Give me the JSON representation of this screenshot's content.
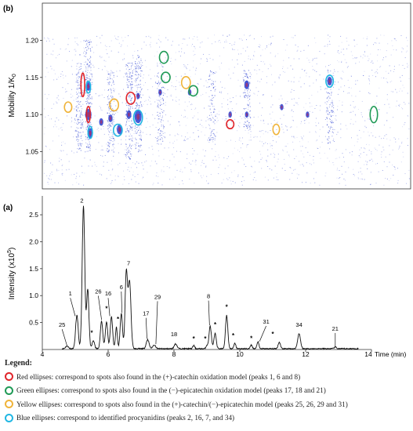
{
  "colors": {
    "red": "#e0252b",
    "green": "#1f9a56",
    "yellow": "#f0b43a",
    "blue": "#21b7e3",
    "spot": "#2a3fd0",
    "trace": "#111111"
  },
  "chart_data": [
    {
      "type": "heatmap",
      "panel_label": "(b)",
      "ylabel": "Mobility 1/K",
      "ylabel_sub": "0",
      "ylim": [
        1.0,
        1.25
      ],
      "yticks": [
        "1.20",
        "1.15",
        "1.10",
        "1.05"
      ],
      "ytick_values": [
        1.2,
        1.15,
        1.1,
        1.05
      ],
      "xlim": [
        4,
        14
      ],
      "spot_bands": [
        {
          "x": 5.0,
          "y1": 1.05,
          "y2": 1.17,
          "strength": 0.5
        },
        {
          "x": 5.25,
          "y1": 1.05,
          "y2": 1.2,
          "strength": 0.7
        },
        {
          "x": 5.85,
          "y1": 1.05,
          "y2": 1.16,
          "strength": 0.5
        },
        {
          "x": 6.35,
          "y1": 1.04,
          "y2": 1.17,
          "strength": 0.6
        },
        {
          "x": 6.6,
          "y1": 1.05,
          "y2": 1.18,
          "strength": 0.6
        },
        {
          "x": 7.2,
          "y1": 1.06,
          "y2": 1.17,
          "strength": 0.35
        },
        {
          "x": 8.6,
          "y1": 1.06,
          "y2": 1.16,
          "strength": 0.3
        },
        {
          "x": 9.55,
          "y1": 1.08,
          "y2": 1.16,
          "strength": 0.35
        },
        {
          "x": 11.8,
          "y1": 1.06,
          "y2": 1.16,
          "strength": 0.35
        }
      ],
      "spots": [
        {
          "x": 5.25,
          "y": 1.138,
          "r": 3.5
        },
        {
          "x": 5.25,
          "y": 1.1,
          "r": 4.5
        },
        {
          "x": 5.3,
          "y": 1.075,
          "r": 4
        },
        {
          "x": 5.6,
          "y": 1.09,
          "r": 3
        },
        {
          "x": 5.85,
          "y": 1.095,
          "r": 3
        },
        {
          "x": 6.1,
          "y": 1.08,
          "r": 4
        },
        {
          "x": 6.35,
          "y": 1.1,
          "r": 3.5
        },
        {
          "x": 6.6,
          "y": 1.097,
          "r": 5
        },
        {
          "x": 6.6,
          "y": 1.125,
          "r": 2.5
        },
        {
          "x": 7.2,
          "y": 1.13,
          "r": 2.5
        },
        {
          "x": 8.0,
          "y": 1.13,
          "r": 2.5
        },
        {
          "x": 9.1,
          "y": 1.1,
          "r": 2.5
        },
        {
          "x": 9.55,
          "y": 1.14,
          "r": 3.5
        },
        {
          "x": 9.55,
          "y": 1.1,
          "r": 2.5
        },
        {
          "x": 10.5,
          "y": 1.11,
          "r": 2.5
        },
        {
          "x": 11.2,
          "y": 1.1,
          "r": 2.5
        },
        {
          "x": 11.8,
          "y": 1.145,
          "r": 3.5
        }
      ],
      "ellipses": [
        {
          "group": "red",
          "x": 5.1,
          "y": 1.14,
          "rx": 0.05,
          "ry": 0.016
        },
        {
          "group": "red",
          "x": 5.25,
          "y": 1.1,
          "rx": 0.05,
          "ry": 0.011
        },
        {
          "group": "red",
          "x": 6.4,
          "y": 1.122,
          "rx": 0.12,
          "ry": 0.008
        },
        {
          "group": "red",
          "x": 9.1,
          "y": 1.087,
          "rx": 0.1,
          "ry": 0.006
        },
        {
          "group": "green",
          "x": 7.3,
          "y": 1.177,
          "rx": 0.12,
          "ry": 0.008
        },
        {
          "group": "green",
          "x": 7.35,
          "y": 1.15,
          "rx": 0.12,
          "ry": 0.007
        },
        {
          "group": "green",
          "x": 8.1,
          "y": 1.132,
          "rx": 0.12,
          "ry": 0.007
        },
        {
          "group": "green",
          "x": 13.0,
          "y": 1.1,
          "rx": 0.1,
          "ry": 0.011
        },
        {
          "group": "yellow",
          "x": 4.7,
          "y": 1.11,
          "rx": 0.1,
          "ry": 0.007
        },
        {
          "group": "yellow",
          "x": 5.95,
          "y": 1.113,
          "rx": 0.12,
          "ry": 0.008
        },
        {
          "group": "yellow",
          "x": 7.9,
          "y": 1.143,
          "rx": 0.12,
          "ry": 0.008
        },
        {
          "group": "yellow",
          "x": 10.35,
          "y": 1.08,
          "rx": 0.09,
          "ry": 0.007
        },
        {
          "group": "blue",
          "x": 5.25,
          "y": 1.137,
          "rx": 0.06,
          "ry": 0.008
        },
        {
          "group": "blue",
          "x": 5.3,
          "y": 1.076,
          "rx": 0.06,
          "ry": 0.008
        },
        {
          "group": "blue",
          "x": 6.05,
          "y": 1.079,
          "rx": 0.12,
          "ry": 0.008
        },
        {
          "group": "blue",
          "x": 6.6,
          "y": 1.096,
          "rx": 0.12,
          "ry": 0.01
        },
        {
          "group": "blue",
          "x": 11.8,
          "y": 1.145,
          "rx": 0.1,
          "ry": 0.008
        }
      ]
    },
    {
      "type": "line",
      "panel_label": "(a)",
      "ylabel": "Intensity (x10",
      "ylabel_sup": "5",
      "ylabel_end": ")",
      "xlabel": "Time (min)",
      "xlim": [
        4,
        14
      ],
      "ylim": [
        0,
        2.85
      ],
      "xticks": [
        "4",
        "6",
        "8",
        "10",
        "12",
        "14"
      ],
      "xtick_values": [
        4,
        6,
        8,
        10,
        12,
        14
      ],
      "yticks": [
        "0.5",
        "1.0",
        "1.5",
        "2.0",
        "2.5"
      ],
      "ytick_values": [
        0.5,
        1.0,
        1.5,
        2.0,
        2.5
      ],
      "peaks": [
        {
          "x": 4.75,
          "h": 0.05,
          "w": 0.06
        },
        {
          "x": 5.05,
          "h": 0.62,
          "w": 0.055
        },
        {
          "x": 5.25,
          "h": 2.65,
          "w": 0.055
        },
        {
          "x": 5.38,
          "h": 1.1,
          "w": 0.05
        },
        {
          "x": 5.55,
          "h": 0.15,
          "w": 0.05
        },
        {
          "x": 5.8,
          "h": 0.52,
          "w": 0.05
        },
        {
          "x": 5.95,
          "h": 0.5,
          "w": 0.05
        },
        {
          "x": 6.1,
          "h": 0.6,
          "w": 0.05
        },
        {
          "x": 6.25,
          "h": 0.4,
          "w": 0.04
        },
        {
          "x": 6.4,
          "h": 0.65,
          "w": 0.05
        },
        {
          "x": 6.55,
          "h": 1.4,
          "w": 0.05
        },
        {
          "x": 6.65,
          "h": 1.25,
          "w": 0.06
        },
        {
          "x": 7.2,
          "h": 0.17,
          "w": 0.06
        },
        {
          "x": 7.4,
          "h": 0.07,
          "w": 0.06
        },
        {
          "x": 8.05,
          "h": 0.09,
          "w": 0.06
        },
        {
          "x": 8.6,
          "h": 0.06,
          "w": 0.04
        },
        {
          "x": 9.0,
          "h": 0.06,
          "w": 0.04
        },
        {
          "x": 9.1,
          "h": 0.42,
          "w": 0.05
        },
        {
          "x": 9.25,
          "h": 0.28,
          "w": 0.05
        },
        {
          "x": 9.6,
          "h": 0.62,
          "w": 0.05
        },
        {
          "x": 9.85,
          "h": 0.1,
          "w": 0.04
        },
        {
          "x": 10.35,
          "h": 0.07,
          "w": 0.04
        },
        {
          "x": 10.55,
          "h": 0.13,
          "w": 0.04
        },
        {
          "x": 11.2,
          "h": 0.12,
          "w": 0.05
        },
        {
          "x": 11.8,
          "h": 0.28,
          "w": 0.06
        },
        {
          "x": 12.9,
          "h": 0.03,
          "w": 0.05
        }
      ],
      "annotations": [
        {
          "text": "2",
          "x": 5.2,
          "y": 2.73,
          "arrow": false
        },
        {
          "text": "7",
          "x": 6.62,
          "y": 1.56,
          "arrow": false
        },
        {
          "text": "1",
          "x": 4.85,
          "y": 1.0,
          "arrow": true,
          "ax": 5.0,
          "ay": 0.62
        },
        {
          "text": "26",
          "x": 5.7,
          "y": 1.04,
          "arrow": true,
          "ax": 5.8,
          "ay": 0.55
        },
        {
          "text": "16",
          "x": 6.0,
          "y": 1.0,
          "arrow": true,
          "ax": 6.05,
          "ay": 0.62
        },
        {
          "text": "6",
          "x": 6.4,
          "y": 1.12,
          "arrow": true,
          "ax": 6.42,
          "ay": 0.68
        },
        {
          "text": "29",
          "x": 7.5,
          "y": 0.94,
          "arrow": true,
          "ax": 7.45,
          "ay": 0.1
        },
        {
          "text": "17",
          "x": 7.15,
          "y": 0.63,
          "arrow": true,
          "ax": 7.18,
          "ay": 0.2
        },
        {
          "text": "8",
          "x": 9.05,
          "y": 0.95,
          "arrow": true,
          "ax": 9.08,
          "ay": 0.45
        },
        {
          "text": "25",
          "x": 4.6,
          "y": 0.42,
          "arrow": true,
          "ax": 4.75,
          "ay": 0.07
        },
        {
          "text": "18",
          "x": 8.0,
          "y": 0.25,
          "arrow": false
        },
        {
          "text": "31",
          "x": 10.8,
          "y": 0.48,
          "arrow": true,
          "ax": 10.6,
          "ay": 0.15
        },
        {
          "text": "34",
          "x": 11.8,
          "y": 0.42,
          "arrow": false
        },
        {
          "text": "21",
          "x": 12.9,
          "y": 0.35,
          "arrow": true,
          "ax": 12.9,
          "ay": 0.05
        }
      ],
      "stars": [
        {
          "x": 5.5,
          "y": 0.27
        },
        {
          "x": 5.95,
          "y": 0.72
        },
        {
          "x": 6.3,
          "y": 0.52
        },
        {
          "x": 8.6,
          "y": 0.16
        },
        {
          "x": 8.95,
          "y": 0.16
        },
        {
          "x": 9.25,
          "y": 0.42
        },
        {
          "x": 9.6,
          "y": 0.75
        },
        {
          "x": 9.8,
          "y": 0.22
        },
        {
          "x": 10.35,
          "y": 0.17
        },
        {
          "x": 11.0,
          "y": 0.25
        }
      ]
    }
  ],
  "legend": {
    "title": "Legend:",
    "items": [
      {
        "group": "red",
        "text": "Red ellipses: correspond to spots also found in the (+)-catechin oxidation model (peaks 1, 6 and 8)"
      },
      {
        "group": "green",
        "text": "Green ellipses: correspond to spots also found in the (−)-epicatechin oxidation model (peaks 17, 18 and 21)"
      },
      {
        "group": "yellow",
        "text": "Yellow ellipses: correspond to spots also found in the (+)-catechin/(−)-epicatechin model (peaks 25, 26, 29 and 31)"
      },
      {
        "group": "blue",
        "text": "Blue ellipses: correspond to identified procyanidins (peaks 2, 16, 7, and 34)"
      }
    ]
  }
}
